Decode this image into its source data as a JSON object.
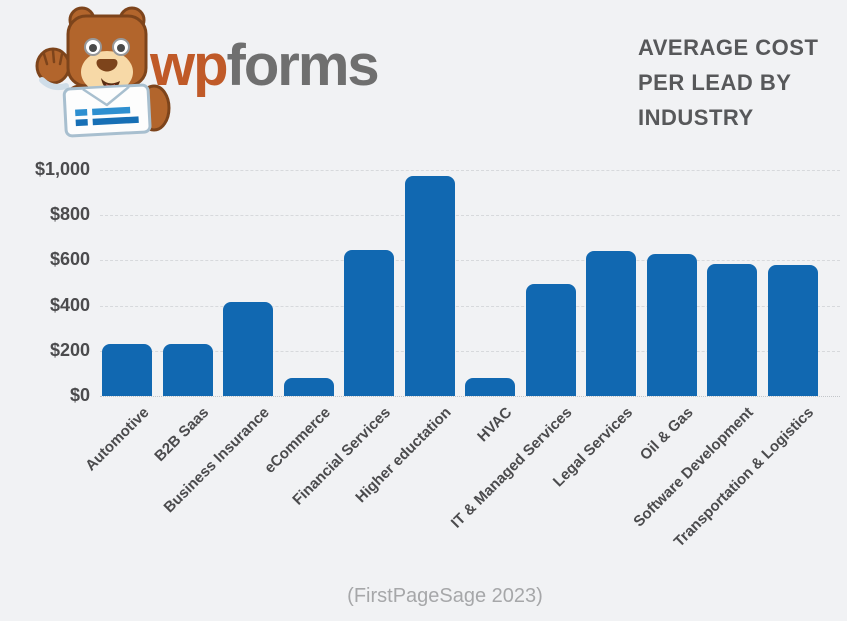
{
  "logo": {
    "wordmark_wp": "wp",
    "wordmark_forms": "forms",
    "wp_color": "#c05a28",
    "forms_color": "#6f6f6f"
  },
  "header": {
    "title_lines": [
      "AVERAGE COST",
      "PER LEAD BY",
      "INDUSTRY"
    ],
    "title_color": "#57585a"
  },
  "caption": "(FirstPageSage 2023)",
  "chart_data": {
    "type": "bar",
    "title": "AVERAGE COST PER LEAD BY INDUSTRY",
    "source": "(FirstPageSage 2023)",
    "categories": [
      "Automotive",
      "B2B Saas",
      "Business Insurance",
      "eCommerce",
      "Financial Services",
      "Higher eductation",
      "HVAC",
      "IT & Managed Services",
      "Legal Services",
      "Oil & Gas",
      "Software Development",
      "Transportation & Logistics"
    ],
    "values": [
      230,
      230,
      415,
      80,
      645,
      975,
      80,
      495,
      640,
      630,
      585,
      580
    ],
    "xlabel": "",
    "ylabel": "",
    "ylim": [
      0,
      1000
    ],
    "yticks": [
      0,
      200,
      400,
      600,
      800,
      1000
    ],
    "ytick_labels": [
      "$0",
      "$200",
      "$400",
      "$600",
      "$800",
      "$1,000"
    ],
    "bar_color": "#1168b1",
    "grid": true,
    "legend": false
  }
}
